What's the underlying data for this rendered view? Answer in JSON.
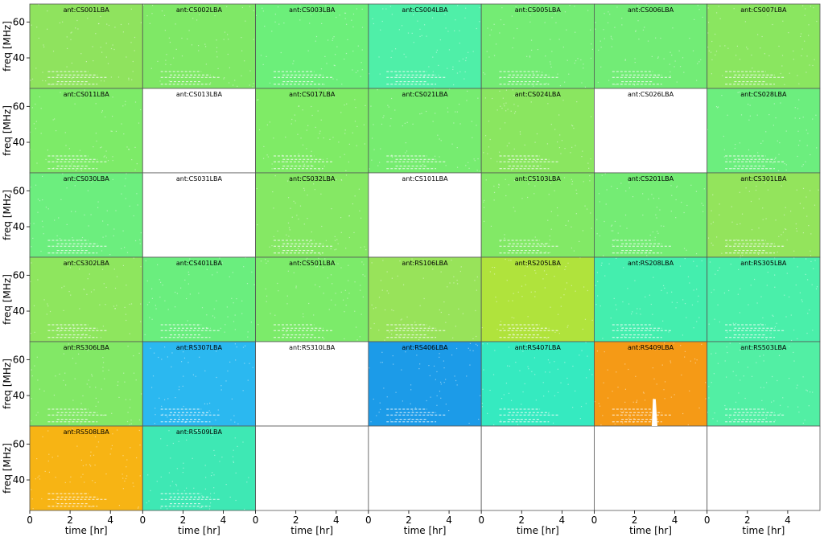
{
  "chart_data": {
    "type": "heatmap",
    "layout": {
      "rows": 6,
      "cols": 7
    },
    "xlabel": "time [hr]",
    "ylabel": "freq [MHz]",
    "xlim": [
      0,
      5.6
    ],
    "ylim": [
      23,
      70
    ],
    "xticks": [
      0,
      2,
      4
    ],
    "yticks": [
      40,
      60
    ],
    "panels": [
      {
        "title": "ant:CS001LBA",
        "color": "#8fe35e"
      },
      {
        "title": "ant:CS002LBA",
        "color": "#7fe866"
      },
      {
        "title": "ant:CS003LBA",
        "color": "#6cef7a"
      },
      {
        "title": "ant:CS004LBA",
        "color": "#4fefa8"
      },
      {
        "title": "ant:CS005LBA",
        "color": "#74ec74"
      },
      {
        "title": "ant:CS006LBA",
        "color": "#72ec76"
      },
      {
        "title": "ant:CS007LBA",
        "color": "#8ae660"
      },
      {
        "title": "ant:CS011LBA",
        "color": "#7deb68"
      },
      {
        "title": "ant:CS013LBA",
        "color": null
      },
      {
        "title": "ant:CS017LBA",
        "color": "#7feb66"
      },
      {
        "title": "ant:CS021LBA",
        "color": "#76ec70"
      },
      {
        "title": "ant:CS024LBA",
        "color": "#8ae660"
      },
      {
        "title": "ant:CS026LBA",
        "color": null
      },
      {
        "title": "ant:CS028LBA",
        "color": "#6cee7e"
      },
      {
        "title": "ant:CS030LBA",
        "color": "#6cee7e"
      },
      {
        "title": "ant:CS031LBA",
        "color": null
      },
      {
        "title": "ant:CS032LBA",
        "color": "#85e864"
      },
      {
        "title": "ant:CS101LBA",
        "color": null
      },
      {
        "title": "ant:CS103LBA",
        "color": "#82e966"
      },
      {
        "title": "ant:CS201LBA",
        "color": "#74ec74"
      },
      {
        "title": "ant:CS301LBA",
        "color": "#93e45c"
      },
      {
        "title": "ant:CS302LBA",
        "color": "#8ee65e"
      },
      {
        "title": "ant:CS401LBA",
        "color": "#6aee7e"
      },
      {
        "title": "ant:CS501LBA",
        "color": "#7ceb6a"
      },
      {
        "title": "ant:RS106LBA",
        "color": "#98e35a"
      },
      {
        "title": "ant:RS205LBA",
        "color": "#b0e33c"
      },
      {
        "title": "ant:RS208LBA",
        "color": "#44eeae"
      },
      {
        "title": "ant:RS305LBA",
        "color": "#4aefaa"
      },
      {
        "title": "ant:RS306LBA",
        "color": "#82e866"
      },
      {
        "title": "ant:RS307LBA",
        "color": "#2bb8f0"
      },
      {
        "title": "ant:RS310LBA",
        "color": null
      },
      {
        "title": "ant:RS406LBA",
        "color": "#1c9be8"
      },
      {
        "title": "ant:RS407LBA",
        "color": "#35eac0"
      },
      {
        "title": "ant:RS409LBA",
        "color": "#f59a16"
      },
      {
        "title": "ant:RS503LBA",
        "color": "#52efa4"
      },
      {
        "title": "ant:RS508LBA",
        "color": "#f7b414"
      },
      {
        "title": "ant:RS509LBA",
        "color": "#3ee8b4"
      },
      {
        "title": "",
        "color": null
      },
      {
        "title": "",
        "color": null
      },
      {
        "title": "",
        "color": null
      },
      {
        "title": "",
        "color": null
      },
      {
        "title": "",
        "color": null
      }
    ]
  }
}
